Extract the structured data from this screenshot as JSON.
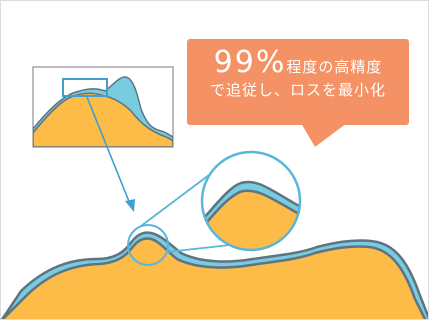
{
  "callout": {
    "percent": "99%",
    "line1_suffix": "程度の高精度",
    "line2": "で追従し、ロスを最小化"
  },
  "colors": {
    "orange_fill": "#fdbb48",
    "blue_band": "#78cce0",
    "outline": "#5f7382",
    "callout_bg": "#f49266",
    "arrow": "#3f9fd1",
    "lens": "#5ab6d8"
  }
}
